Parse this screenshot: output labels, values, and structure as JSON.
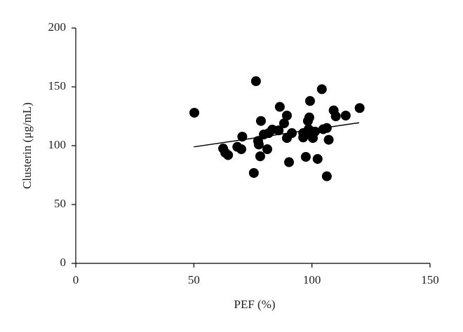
{
  "chart_data": {
    "type": "scatter",
    "x_label": "PEF (%)",
    "y_label": "Clusterin (μg/mL)",
    "xlim": [
      0,
      150
    ],
    "xticks": [
      0,
      50,
      100,
      150
    ],
    "ylim": [
      0,
      200
    ],
    "yticks": [
      0,
      50,
      100,
      150,
      200
    ],
    "color": "#000000",
    "x": [
      50.2,
      62.4,
      63.3,
      64.5,
      68.4,
      70.5,
      70.1,
      75.4,
      76.3,
      77.2,
      77.5,
      78.1,
      78.4,
      79.6,
      81.1,
      81.7,
      83.2,
      85.9,
      86.4,
      88.2,
      89.4,
      89.4,
      90.3,
      91.5,
      96.3,
      96.3,
      97.4,
      98.3,
      98.9,
      99.2,
      98.6,
      99.5,
      100.4,
      101.3,
      102.4,
      104.2,
      104.8,
      106.3,
      106.3,
      107.1,
      109.2,
      110.1,
      114.3,
      120.2
    ],
    "values": [
      128,
      97.6,
      94,
      92,
      99,
      107.7,
      97,
      76.8,
      154.8,
      104,
      101,
      91,
      121,
      109.5,
      97,
      110.7,
      113.7,
      113,
      133,
      119,
      125.6,
      106.5,
      86,
      110.7,
      110.7,
      107,
      90.5,
      121,
      124,
      138,
      114,
      110.7,
      106.5,
      112,
      88.7,
      148,
      114,
      115,
      74,
      105,
      130,
      125,
      125.6,
      132
    ],
    "trendline": {
      "x": [
        50,
        120
      ],
      "values": [
        99,
        119.5
      ]
    }
  }
}
